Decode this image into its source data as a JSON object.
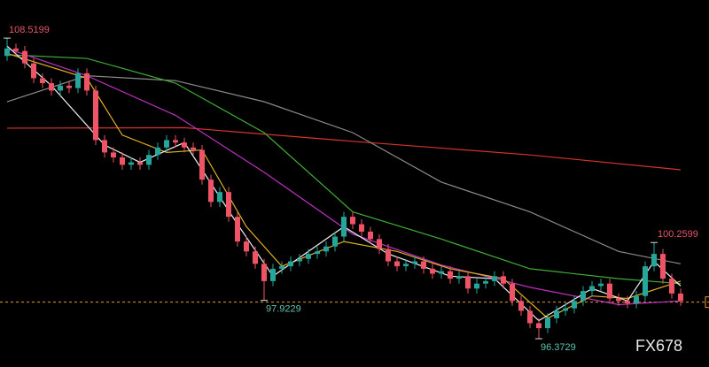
{
  "chart_data": {
    "type": "candlestick",
    "ylim": [
      95.23,
      110.06
    ],
    "up_color": "#26a69a",
    "down_color": "#ef5366",
    "open": [
      107.8,
      108.1,
      108.0,
      107.5,
      106.9,
      106.7,
      106.4,
      106.6,
      106.5,
      107.1,
      106.4,
      104.4,
      103.9,
      103.7,
      103.4,
      103.5,
      103.4,
      103.8,
      104.1,
      104.4,
      104.3,
      104.1,
      104.0,
      102.8,
      101.9,
      102.3,
      101.3,
      100.3,
      99.9,
      99.4,
      98.7,
      99.2,
      99.3,
      99.5,
      99.6,
      99.8,
      99.9,
      100.1,
      100.5,
      101.3,
      101.0,
      100.7,
      100.4,
      100.0,
      99.5,
      99.3,
      99.4,
      99.5,
      99.2,
      99.0,
      99.1,
      98.8,
      98.9,
      98.4,
      98.6,
      98.7,
      98.9,
      98.6,
      97.9,
      97.5,
      97.0,
      96.8,
      97.2,
      97.5,
      97.6,
      97.9,
      98.3,
      98.5,
      98.6,
      98.0,
      97.9,
      97.8,
      98.1,
      99.3,
      99.8,
      98.8,
      98.2
    ],
    "high": [
      108.5199,
      108.3,
      108.2,
      107.7,
      107.1,
      106.9,
      106.8,
      106.8,
      107.3,
      107.3,
      106.6,
      104.6,
      104.1,
      103.9,
      103.7,
      103.7,
      104.0,
      104.3,
      104.6,
      104.6,
      104.5,
      104.3,
      104.2,
      103.0,
      102.5,
      102.5,
      101.5,
      100.5,
      100.1,
      99.6,
      99.4,
      99.5,
      99.7,
      99.8,
      100.0,
      100.1,
      100.3,
      100.7,
      101.5,
      101.5,
      101.2,
      100.9,
      100.6,
      100.2,
      99.7,
      99.6,
      99.7,
      99.7,
      99.4,
      99.3,
      99.3,
      99.1,
      99.1,
      98.8,
      98.9,
      99.1,
      99.1,
      98.8,
      98.1,
      97.7,
      97.2,
      97.4,
      97.7,
      97.8,
      98.1,
      98.5,
      98.7,
      98.8,
      98.8,
      98.2,
      98.1,
      98.3,
      99.5,
      100.2599,
      100.0,
      99.0,
      98.4
    ],
    "low": [
      107.6,
      107.8,
      107.3,
      106.7,
      106.5,
      106.2,
      106.2,
      106.3,
      106.3,
      106.2,
      104.2,
      103.7,
      103.5,
      103.2,
      103.2,
      103.2,
      103.2,
      103.6,
      103.9,
      104.1,
      103.9,
      103.8,
      102.6,
      101.7,
      101.7,
      101.1,
      100.1,
      99.7,
      99.2,
      97.9229,
      98.5,
      99.0,
      99.1,
      99.3,
      99.4,
      99.6,
      99.7,
      99.9,
      100.3,
      100.8,
      100.5,
      100.2,
      99.8,
      99.3,
      99.1,
      99.1,
      99.2,
      99.0,
      98.8,
      98.8,
      98.6,
      98.6,
      98.2,
      98.2,
      98.4,
      98.5,
      98.4,
      97.7,
      97.3,
      96.8,
      96.3729,
      96.6,
      97.0,
      97.3,
      97.4,
      97.7,
      98.1,
      98.3,
      97.8,
      97.7,
      97.6,
      97.6,
      97.9,
      99.1,
      98.6,
      98.0,
      97.7
    ],
    "close": [
      108.1,
      108.0,
      107.5,
      106.9,
      106.7,
      106.4,
      106.6,
      106.5,
      107.1,
      106.4,
      104.4,
      103.9,
      103.7,
      103.4,
      103.5,
      103.4,
      103.8,
      104.1,
      104.4,
      104.3,
      104.1,
      104.0,
      102.8,
      101.9,
      102.3,
      101.3,
      100.3,
      99.9,
      99.4,
      98.7,
      99.2,
      99.3,
      99.5,
      99.6,
      99.8,
      99.9,
      100.1,
      100.5,
      101.3,
      101.0,
      100.7,
      100.4,
      100.0,
      99.5,
      99.3,
      99.4,
      99.5,
      99.2,
      99.0,
      99.1,
      98.8,
      98.9,
      98.4,
      98.6,
      98.7,
      98.9,
      98.6,
      97.9,
      97.5,
      97.0,
      96.8,
      97.2,
      97.5,
      97.6,
      97.9,
      98.3,
      98.5,
      98.6,
      98.0,
      97.9,
      97.8,
      98.1,
      99.3,
      99.8,
      98.8,
      98.2,
      97.9
    ],
    "lines": [
      {
        "color": "#d8332c",
        "x": [
          0,
          20,
          39,
          59,
          76
        ],
        "values": [
          104.88,
          104.9,
          104.35,
          103.8,
          103.2
        ]
      },
      {
        "color": "#8a8a8a",
        "x": [
          0,
          9,
          19,
          29,
          39,
          49,
          59,
          69,
          76
        ],
        "values": [
          105.95,
          107.0,
          106.8,
          105.95,
          104.7,
          102.7,
          101.5,
          99.9,
          99.4
        ]
      },
      {
        "color": "#3fae35",
        "x": [
          0,
          9,
          19,
          29,
          39,
          49,
          59,
          69,
          76
        ],
        "values": [
          107.85,
          107.7,
          106.7,
          104.7,
          101.5,
          100.4,
          99.2,
          98.8,
          98.6
        ]
      },
      {
        "color": "#c030c0",
        "x": [
          0,
          9,
          19,
          29,
          39,
          49,
          59,
          69,
          76
        ],
        "values": [
          108.1,
          107.0,
          105.4,
          103.1,
          100.6,
          99.35,
          98.45,
          97.75,
          97.9
        ]
      },
      {
        "color": "#e0b020",
        "x": [
          0,
          9,
          13,
          18,
          22,
          27,
          31,
          38,
          44,
          50,
          56,
          61,
          66,
          70,
          76
        ],
        "values": [
          107.9,
          106.9,
          104.6,
          103.9,
          104.0,
          100.9,
          99.3,
          100.3,
          99.9,
          99.2,
          98.8,
          97.2,
          98.1,
          98.0,
          98.7
        ]
      },
      {
        "color": "#f0f0f0",
        "x": [
          0,
          5,
          11,
          15,
          20,
          26,
          30,
          38,
          43,
          50,
          55,
          60,
          66,
          70,
          73,
          76
        ],
        "values": [
          108.2,
          106.6,
          104.2,
          103.5,
          104.3,
          101.0,
          98.9,
          100.9,
          99.8,
          98.9,
          98.8,
          97.1,
          98.4,
          97.9,
          99.5,
          98.5
        ]
      }
    ],
    "last_price": 97.85,
    "last_price_color": "#e89a30",
    "high_labels": [
      108.5199,
      100.2599
    ],
    "high_label_color": "#e8566a",
    "low_labels": [
      97.9229,
      96.3729
    ],
    "low_label_color": "#5fc2b2",
    "watermark": "FX678"
  }
}
